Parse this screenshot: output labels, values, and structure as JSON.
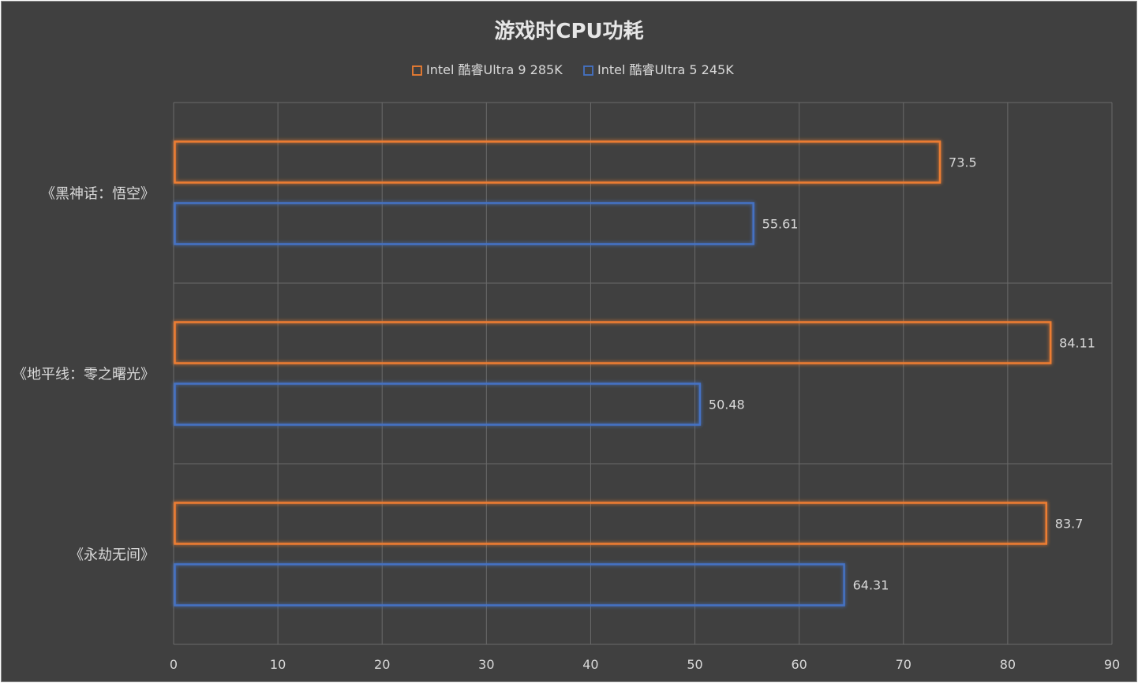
{
  "chart_data": {
    "type": "bar",
    "orientation": "horizontal",
    "title": "游戏时CPU功耗",
    "categories": [
      "《黑神话：悟空》",
      "《地平线：零之曙光》",
      "《永劫无间》"
    ],
    "series": [
      {
        "name": "Intel 酷睿Ultra 9 285K",
        "color": "#ed7d31",
        "values": [
          73.5,
          84.11,
          83.7
        ],
        "labels": [
          "73.5",
          "84.11",
          "83.7"
        ]
      },
      {
        "name": "Intel 酷睿Ultra 5 245K",
        "color": "#4472c4",
        "values": [
          55.61,
          50.48,
          64.31
        ],
        "labels": [
          "55.61",
          "50.48",
          "64.31"
        ]
      }
    ],
    "xlim": [
      0,
      90
    ],
    "xticks": [
      0,
      10,
      20,
      30,
      40,
      50,
      60,
      70,
      80,
      90
    ],
    "xticklabels": [
      "0",
      "10",
      "20",
      "30",
      "40",
      "50",
      "60",
      "70",
      "80",
      "90"
    ],
    "grid": true,
    "legend_position": "top-center",
    "background": "#404040"
  }
}
